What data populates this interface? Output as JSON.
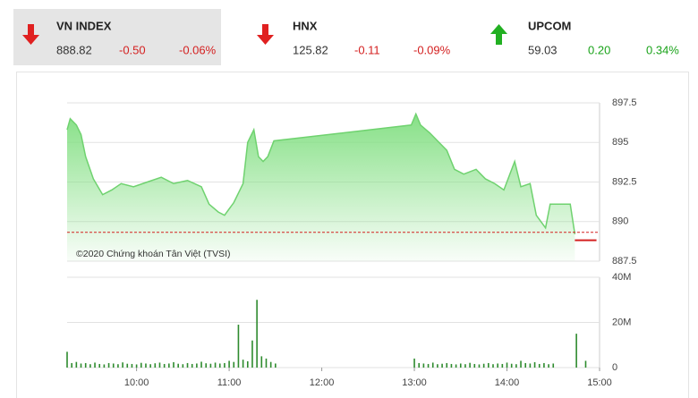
{
  "indices": [
    {
      "name": "VN INDEX",
      "value": "888.82",
      "change": "-0.50",
      "percent": "-0.06%"
    },
    {
      "name": "HNX",
      "value": "125.82",
      "change": "-0.11",
      "percent": "-0.09%"
    },
    {
      "name": "UPCOM",
      "value": "59.03",
      "change": "0.20",
      "percent": "0.34%"
    }
  ],
  "chart_data": [
    {
      "type": "area",
      "annotation": "©2020 Chứng khoán Tân Việt (TVSI)",
      "xlim": [
        555,
        900
      ],
      "ylim": [
        887.5,
        897.5
      ],
      "yticks": [
        887.5,
        890,
        892.5,
        895,
        897.5
      ],
      "grid": true,
      "reference": 889.32,
      "reference_color": "#d42020",
      "series": [
        {
          "color": "#6fd26f",
          "x": [
            555,
            557,
            561,
            564,
            567,
            572,
            578,
            584,
            590,
            598,
            607,
            616,
            624,
            633,
            642,
            647,
            653,
            657,
            663,
            669,
            672,
            676,
            679,
            682,
            685,
            689,
            778,
            781,
            784,
            790,
            796,
            801,
            806,
            812,
            820,
            826,
            832,
            838,
            845,
            849,
            855,
            859,
            865,
            868,
            881,
            884
          ],
          "values": [
            895.8,
            896.5,
            896.1,
            895.5,
            894.1,
            892.7,
            891.7,
            892.0,
            892.4,
            892.2,
            892.5,
            892.8,
            892.4,
            892.6,
            892.2,
            891.1,
            890.6,
            890.4,
            891.2,
            892.4,
            895.0,
            895.8,
            894.1,
            893.8,
            894.1,
            895.1,
            896.1,
            896.8,
            896.1,
            895.6,
            895.0,
            894.5,
            893.3,
            893.0,
            893.3,
            892.7,
            892.4,
            892.0,
            893.8,
            892.2,
            892.4,
            890.4,
            889.6,
            891.1,
            891.1,
            889.2
          ]
        },
        {
          "color": "#d42020",
          "x": [
            884,
            898
          ],
          "values": [
            888.82,
            888.82
          ]
        }
      ]
    },
    {
      "type": "bar",
      "color": "#2e8b2e",
      "xlim": [
        555,
        900
      ],
      "ylim": [
        0,
        40000000
      ],
      "yticks": [
        0,
        {
          "value": 20000000,
          "label": "20M"
        },
        {
          "value": 40000000,
          "label": "40M"
        }
      ],
      "grid": true,
      "xticks": [
        {
          "value": 600,
          "label": "10:00"
        },
        {
          "value": 660,
          "label": "11:00"
        },
        {
          "value": 720,
          "label": "12:00"
        },
        {
          "value": 780,
          "label": "13:00"
        },
        {
          "value": 840,
          "label": "14:00"
        },
        {
          "value": 900,
          "label": "15:00"
        }
      ],
      "x": [
        555,
        558,
        561,
        564,
        567,
        570,
        573,
        576,
        579,
        582,
        585,
        588,
        591,
        594,
        597,
        600,
        603,
        606,
        609,
        612,
        615,
        618,
        621,
        624,
        627,
        630,
        633,
        636,
        639,
        642,
        645,
        648,
        651,
        654,
        657,
        660,
        663,
        666,
        669,
        672,
        675,
        678,
        681,
        684,
        687,
        690,
        780,
        783,
        786,
        789,
        792,
        795,
        798,
        801,
        804,
        807,
        810,
        813,
        816,
        819,
        822,
        825,
        828,
        831,
        834,
        837,
        840,
        843,
        846,
        849,
        852,
        855,
        858,
        861,
        864,
        867,
        870,
        885,
        891
      ],
      "values": [
        7000000,
        2000000,
        2500000,
        1800000,
        2000000,
        1500000,
        2200000,
        1600000,
        1400000,
        2000000,
        1800000,
        1500000,
        2300000,
        1700000,
        1600000,
        1400000,
        2100000,
        1800000,
        1500000,
        1900000,
        2200000,
        1600000,
        1800000,
        2400000,
        1700000,
        1500000,
        2000000,
        1600000,
        1800000,
        2600000,
        1900000,
        1700000,
        2200000,
        1800000,
        2000000,
        3000000,
        2500000,
        19000000,
        3500000,
        2800000,
        12000000,
        30000000,
        5000000,
        4000000,
        2500000,
        1800000,
        4000000,
        2000000,
        1800000,
        1600000,
        2200000,
        1500000,
        1700000,
        2000000,
        1600000,
        1400000,
        1800000,
        1500000,
        2100000,
        1600000,
        1400000,
        1700000,
        2000000,
        1500000,
        1800000,
        1600000,
        2200000,
        1700000,
        1500000,
        3000000,
        2000000,
        1800000,
        2400000,
        1600000,
        2000000,
        1500000,
        1800000,
        15000000,
        3000000
      ]
    }
  ]
}
